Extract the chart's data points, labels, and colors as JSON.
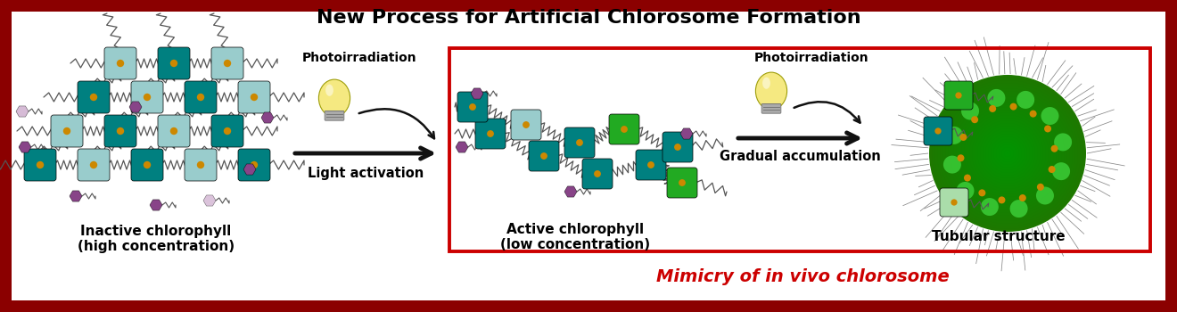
{
  "title": "New Process for Artificial Chlorosome Formation",
  "title_fontsize": 16,
  "bg_color": "#ffffff",
  "border_color": "#8B0000",
  "inner_border_color": "#cc0000",
  "mimicry_text": "Mimicry of in vivo chlorosome",
  "mimicry_color": "#cc0000",
  "mimicry_fontsize": 14,
  "label_inactive": "Inactive chlorophyll\n(high concentration)",
  "label_active": "Active chlorophyll\n(low concentration)",
  "label_tubular": "Tubular structure",
  "label_photo1": "Photoirradiation",
  "label_photo2": "Photoirradiation",
  "label_light": "Light activation",
  "label_gradual": "Gradual accumulation",
  "arrow_color": "#111111",
  "teal_dark": "#008080",
  "teal_light": "#99cccc",
  "green_color": "#22aa22",
  "green_light": "#aaddaa",
  "purple_dark": "#884488",
  "purple_light": "#ccaacc",
  "gold_color": "#cc8800",
  "gray_color": "#666666",
  "zigzag_color": "#555555",
  "bulb_color": "#f5e87a",
  "bulb_top": "#cccccc"
}
